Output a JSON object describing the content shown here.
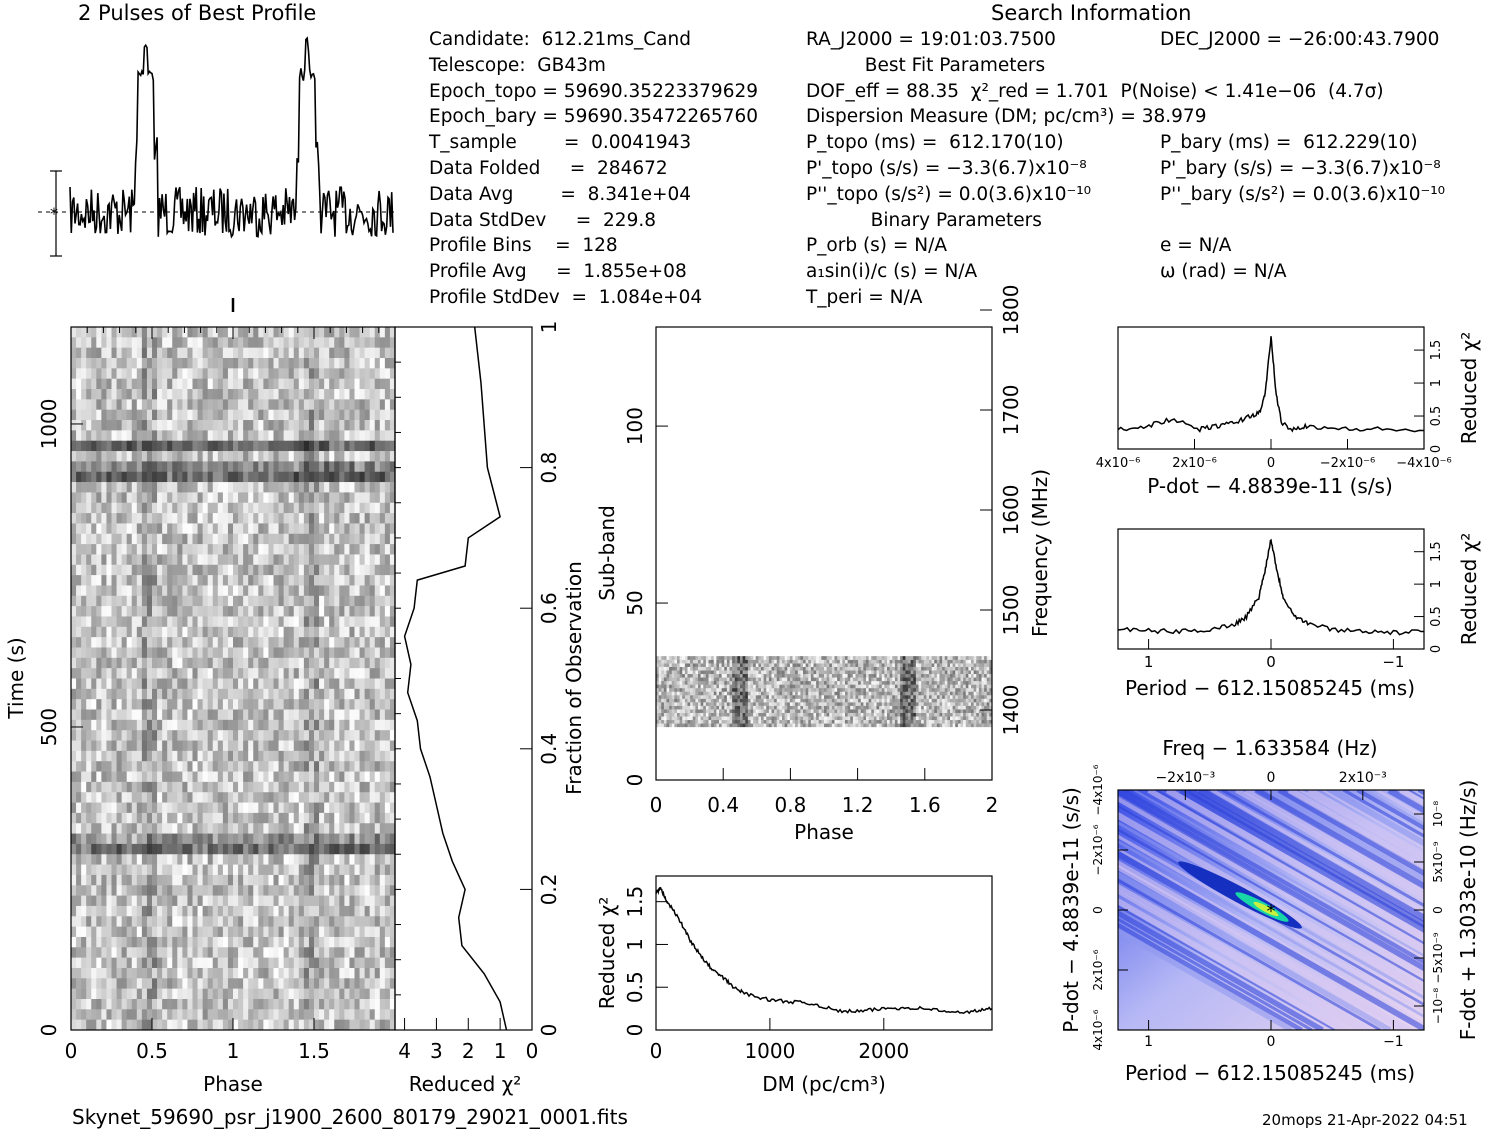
{
  "profile_title": "2 Pulses of Best Profile",
  "search_title": "Search Information",
  "info_col1": [
    "Candidate:  612.21ms_Cand",
    "Telescope:  GB43m",
    "Epoch_topo = 59690.35223379629",
    "Epoch_bary = 59690.35472265760",
    "T_sample        =  0.0041943",
    "Data Folded     =  284672",
    "Data Avg        =  8.341e+04",
    "Data StdDev     =  229.8",
    "Profile Bins    =  128",
    "Profile Avg     =  1.855e+08",
    "Profile StdDev  =  1.084e+04"
  ],
  "info_col2": [
    "RA_J2000 = 19:01:03.7500",
    "          Best Fit Parameters",
    "DOF_eff = 88.35  χ²_red = 1.701  P(Noise) < 1.41e−06  (4.7σ)",
    "Dispersion Measure (DM; pc/cm³) = 38.979",
    "P_topo (ms) =  612.170(10)",
    "P'_topo (s/s) = −3.3(6.7)x10⁻⁸",
    "P''_topo (s/s²) = 0.0(3.6)x10⁻¹⁰",
    "           Binary Parameters",
    "P_orb (s) = N/A",
    "a₁sin(i)/c (s) = N/A",
    "T_peri = N/A"
  ],
  "info_col3": [
    "DEC_J2000 = −26:00:43.7900",
    "",
    "",
    "",
    "P_bary (ms) =  612.229(10)",
    "P'_bary (s/s) = −3.3(6.7)x10⁻⁸",
    "P''_bary (s/s²) = 0.0(3.6)x10⁻¹⁰",
    "",
    "e = N/A",
    "ω (rad) = N/A",
    ""
  ],
  "footer_filename": "Skynet_59690_psr_j1900_2600_80179_29021_0001.fits",
  "footer_stamp": "20mops 21-Apr-2022 04:51",
  "chart_data": [
    {
      "id": "profile",
      "type": "line",
      "title": "2 Pulses of Best Profile",
      "xlim": [
        0,
        2
      ],
      "pulses_at_phase": [
        0.47,
        1.47
      ],
      "peak_height_relative": 1.0,
      "baseline_marker": "*"
    },
    {
      "id": "time-phase",
      "type": "heatmap",
      "xlabel": "Phase",
      "ylabel": "Time (s)",
      "xticks": [
        "0",
        "0.5",
        "1",
        "1.5"
      ],
      "yticks": [
        "0",
        "500",
        "1000"
      ],
      "xlim": [
        0,
        2
      ],
      "ylim": [
        0,
        1160
      ],
      "colormap": "gray"
    },
    {
      "id": "reduced-chi2-vs-time",
      "type": "line",
      "xlabel": "Reduced χ²",
      "ylabel": "Fraction of Observation",
      "xticks": [
        "4",
        "3",
        "2",
        "1",
        "0"
      ],
      "yticks": [
        "0",
        "0.2",
        "0.4",
        "0.6",
        "0.8",
        "1"
      ],
      "xlim": [
        4.3,
        0
      ],
      "ylim": [
        0,
        1
      ],
      "fraction": [
        0.0,
        0.04,
        0.08,
        0.12,
        0.16,
        0.2,
        0.24,
        0.28,
        0.32,
        0.36,
        0.4,
        0.44,
        0.48,
        0.52,
        0.56,
        0.6,
        0.64,
        0.66,
        0.7,
        0.73,
        0.8,
        0.86,
        0.92,
        1.0
      ],
      "reduced_chi2": [
        0.8,
        1.0,
        1.5,
        2.2,
        2.3,
        2.1,
        2.5,
        2.8,
        3.0,
        3.2,
        3.5,
        3.6,
        3.9,
        3.8,
        4.0,
        3.7,
        3.6,
        2.1,
        2.0,
        1.0,
        1.4,
        1.5,
        1.6,
        1.8
      ]
    },
    {
      "id": "subband-phase",
      "type": "heatmap",
      "xlabel": "Phase",
      "ylabel": "Sub-band",
      "y2label": "Frequency (MHz)",
      "xticks": [
        "0",
        "0.4",
        "0.8",
        "1.2",
        "1.6",
        "2"
      ],
      "yticks": [
        "0",
        "50",
        "100"
      ],
      "y2ticks": [
        "1400",
        "1500",
        "1600",
        "1700",
        "1800"
      ],
      "xlim": [
        0,
        2
      ],
      "ylim": [
        0,
        128
      ],
      "filled_subbands": [
        15,
        35
      ],
      "colormap": "gray"
    },
    {
      "id": "dm-curve",
      "type": "line",
      "xlabel": "DM (pc/cm³)",
      "ylabel": "Reduced χ²",
      "xticks": [
        "0",
        "1000",
        "2000"
      ],
      "yticks": [
        "0",
        "0.5",
        "1",
        "1.5"
      ],
      "xlim": [
        0,
        2950
      ],
      "ylim": [
        0,
        1.8
      ],
      "x": [
        0,
        40,
        100,
        200,
        300,
        400,
        500,
        600,
        700,
        800,
        1000,
        1200,
        1400,
        1600,
        1800,
        2000,
        2200,
        2400,
        2600,
        2800,
        2950
      ],
      "y": [
        1.6,
        1.65,
        1.5,
        1.3,
        1.05,
        0.85,
        0.7,
        0.6,
        0.48,
        0.42,
        0.35,
        0.33,
        0.3,
        0.22,
        0.22,
        0.25,
        0.26,
        0.25,
        0.2,
        0.22,
        0.25
      ]
    },
    {
      "id": "pdot-curve",
      "type": "line",
      "xlabel": "P-dot − 4.8839e-11 (s/s)",
      "ylabel": "Reduced χ²",
      "xticks": [
        "4x10⁻⁶",
        "2x10⁻⁶",
        "0",
        "−2x10⁻⁶",
        "−4x10⁻⁶"
      ],
      "yticks": [
        "0",
        "0.5",
        "1",
        "1.5"
      ],
      "xlim": [
        4.3,
        -4.3
      ],
      "ylim": [
        0,
        1.85
      ],
      "x": [
        4.3,
        3.5,
        2.8,
        2.0,
        1.5,
        1.0,
        0.6,
        0.3,
        0.15,
        0.0,
        -0.15,
        -0.3,
        -0.6,
        -1.0,
        -2.0,
        -3.0,
        -4.3
      ],
      "y": [
        0.3,
        0.35,
        0.45,
        0.3,
        0.35,
        0.4,
        0.5,
        0.55,
        0.9,
        1.7,
        0.8,
        0.4,
        0.3,
        0.35,
        0.3,
        0.3,
        0.28
      ]
    },
    {
      "id": "period-curve",
      "type": "line",
      "xlabel": "Period − 612.15085245 (ms)",
      "ylabel": "Reduced χ²",
      "xticks": [
        "1",
        "0",
        "−1"
      ],
      "yticks": [
        "0",
        "0.5",
        "1",
        "1.5"
      ],
      "xlim": [
        1.25,
        -1.25
      ],
      "ylim": [
        0,
        1.85
      ],
      "x": [
        1.25,
        1.0,
        0.75,
        0.5,
        0.3,
        0.2,
        0.1,
        0.05,
        0.0,
        -0.05,
        -0.1,
        -0.2,
        -0.3,
        -0.5,
        -0.75,
        -1.0,
        -1.25
      ],
      "y": [
        0.3,
        0.28,
        0.27,
        0.3,
        0.38,
        0.5,
        0.8,
        1.2,
        1.7,
        1.2,
        0.8,
        0.5,
        0.4,
        0.3,
        0.28,
        0.25,
        0.27
      ]
    },
    {
      "id": "pp-dot-plane",
      "type": "heatmap",
      "title": "Freq − 1.633584 (Hz)",
      "xlabel": "Period − 612.15085245 (ms)",
      "ylabel": "P-dot − 4.8839e-11 (s/s)",
      "y2label": "F-dot + 1.3033e-10 (Hz/s)",
      "xticks": [
        "1",
        "0",
        "−1"
      ],
      "x2ticks": [
        "−2x10⁻³",
        "0",
        "2x10⁻³"
      ],
      "yticks": [
        "4x10⁻⁶",
        "2x10⁻⁶",
        "0",
        "−2x10⁻⁶",
        "−4x10⁻⁶"
      ],
      "y2ticks": [
        "−10⁻⁸",
        "−5x10⁻⁹",
        "0",
        "5x10⁻⁹",
        "10⁻⁸"
      ],
      "xlim": [
        1.25,
        -1.25
      ],
      "ylim": [
        4.3,
        -4.3
      ],
      "best_fit_marker": [
        0,
        0
      ],
      "colormap": "blue-white"
    }
  ]
}
